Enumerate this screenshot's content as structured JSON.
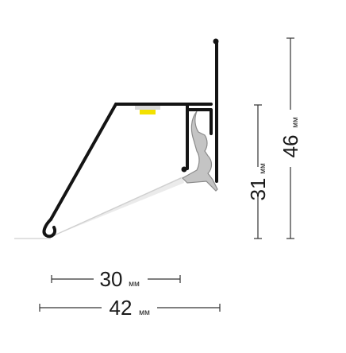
{
  "colors": {
    "profile": "#141414",
    "light_beam": "#cfcfcf",
    "insert": "#b8b8b8",
    "led": "#f3e100",
    "dimension_line": "#333333",
    "background": "#ffffff"
  },
  "dimensions": {
    "width_inner": {
      "value": "30",
      "unit": "мм"
    },
    "width_total": {
      "value": "42",
      "unit": "мм"
    },
    "height_inner": {
      "value": "31",
      "unit": "мм"
    },
    "height_total": {
      "value": "46",
      "unit": "мм"
    }
  }
}
